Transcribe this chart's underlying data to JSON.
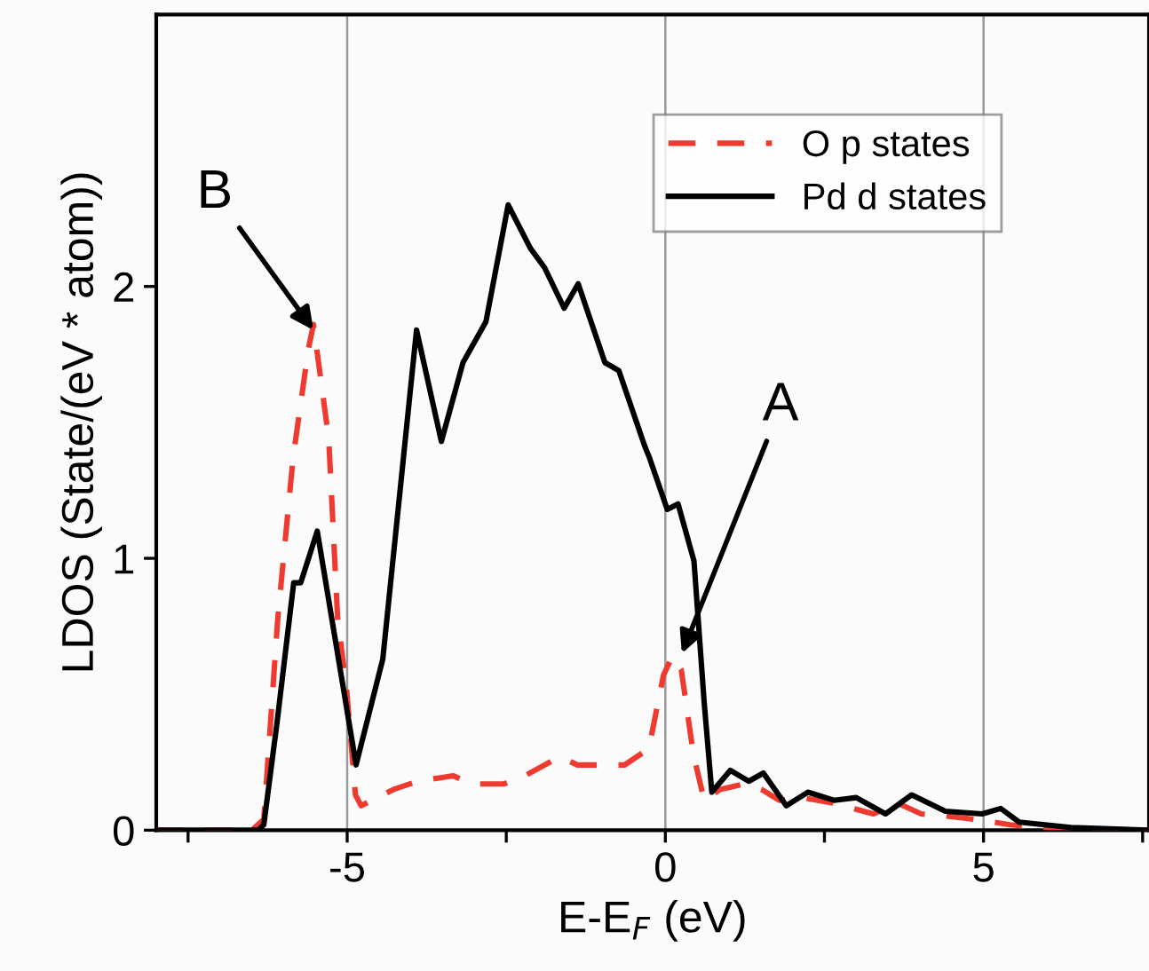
{
  "chart_data": {
    "type": "line",
    "xlabel": "E-E$_{F}$ (eV)",
    "ylabel": "LDOS (State/(eV * atom))",
    "xlim": [
      -8,
      7.6
    ],
    "ylim": [
      0,
      3
    ],
    "xticks": [
      {
        "value": -7.5,
        "label": null
      },
      -5,
      {
        "value": -2.5,
        "label": null
      },
      0,
      {
        "value": 2.5,
        "label": null
      },
      5,
      {
        "value": 7.5,
        "label": null
      }
    ],
    "yticks": [
      0,
      1,
      2
    ],
    "grid": false,
    "legend": "top right",
    "ref_lines": [
      {
        "axis": "x",
        "value": -5,
        "color": "#999999"
      },
      {
        "axis": "x",
        "value": 0,
        "color": "#999999"
      },
      {
        "axis": "x",
        "value": 5,
        "color": "#999999"
      }
    ],
    "annotations": [
      {
        "text": "B",
        "x": -5.53,
        "y": 1.84
      },
      {
        "text": "A",
        "x": 0.26,
        "y": 0.65
      }
    ],
    "series": [
      {
        "name": "O p states",
        "color": "#ee3a2f",
        "line_style": "dashed",
        "x": [
          -8,
          -6.5,
          -6.31,
          -6.09,
          -5.85,
          -5.61,
          -5.53,
          -5.29,
          -5.15,
          -5.01,
          -4.87,
          -4.78,
          -4.27,
          -3.89,
          -3.33,
          -3.05,
          -2.54,
          -2.21,
          -1.66,
          -1.38,
          -0.64,
          -0.26,
          -0.03,
          0.11,
          0.25,
          0.44,
          0.61,
          0.86,
          1.23,
          1.51,
          1.79,
          2.15,
          2.63,
          3.27,
          3.65,
          4.02,
          4.49,
          4.86,
          5.42,
          5.89,
          7.6
        ],
        "values": [
          0,
          0,
          0.04,
          0.78,
          1.37,
          1.77,
          1.86,
          1.44,
          0.78,
          0.52,
          0.13,
          0.09,
          0.15,
          0.18,
          0.2,
          0.17,
          0.17,
          0.2,
          0.27,
          0.24,
          0.24,
          0.3,
          0.57,
          0.64,
          0.59,
          0.28,
          0.11,
          0.15,
          0.17,
          0.15,
          0.11,
          0.12,
          0.1,
          0.06,
          0.1,
          0.06,
          0.05,
          0.04,
          0.02,
          0.01,
          0
        ]
      },
      {
        "name": "Pd d states",
        "color": "#000000",
        "line_style": "solid",
        "x": [
          -8,
          -6.4,
          -6.31,
          -6.1,
          -5.84,
          -5.73,
          -5.47,
          -4.86,
          -4.44,
          -3.91,
          -3.52,
          -3.18,
          -2.82,
          -2.47,
          -2.12,
          -1.9,
          -1.59,
          -1.37,
          -0.95,
          -0.73,
          -0.32,
          -0.25,
          0.03,
          0.2,
          0.45,
          0.61,
          0.73,
          1.02,
          1.31,
          1.54,
          1.9,
          2.24,
          2.65,
          3.0,
          3.46,
          3.87,
          4.4,
          4.98,
          5.27,
          5.56,
          6.37,
          7.6
        ],
        "values": [
          0,
          0,
          0.02,
          0.4,
          0.91,
          0.91,
          1.1,
          0.24,
          0.63,
          1.84,
          1.43,
          1.72,
          1.87,
          2.3,
          2.14,
          2.07,
          1.92,
          2.01,
          1.72,
          1.69,
          1.41,
          1.37,
          1.18,
          1.2,
          0.99,
          0.47,
          0.14,
          0.22,
          0.18,
          0.21,
          0.09,
          0.14,
          0.11,
          0.12,
          0.06,
          0.13,
          0.07,
          0.06,
          0.08,
          0.03,
          0.01,
          0
        ]
      }
    ]
  }
}
